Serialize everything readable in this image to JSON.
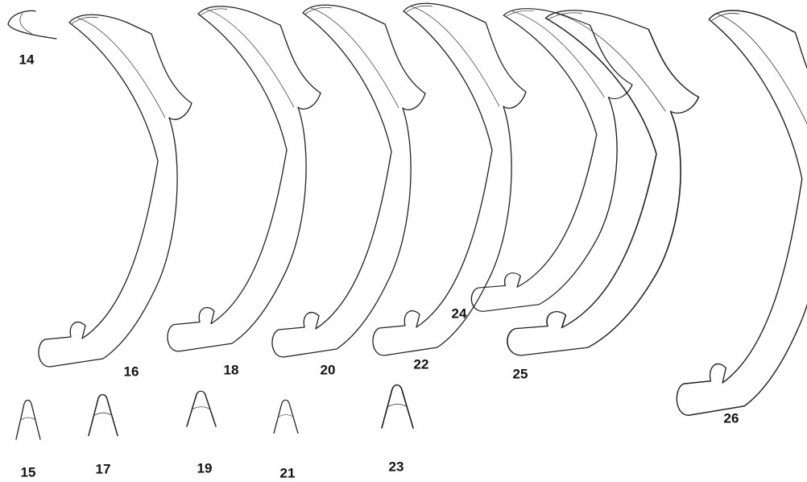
{
  "figure": {
    "labels": [
      "14",
      "15",
      "16",
      "17",
      "18",
      "19",
      "20",
      "21",
      "22",
      "23",
      "24",
      "25",
      "26"
    ]
  }
}
